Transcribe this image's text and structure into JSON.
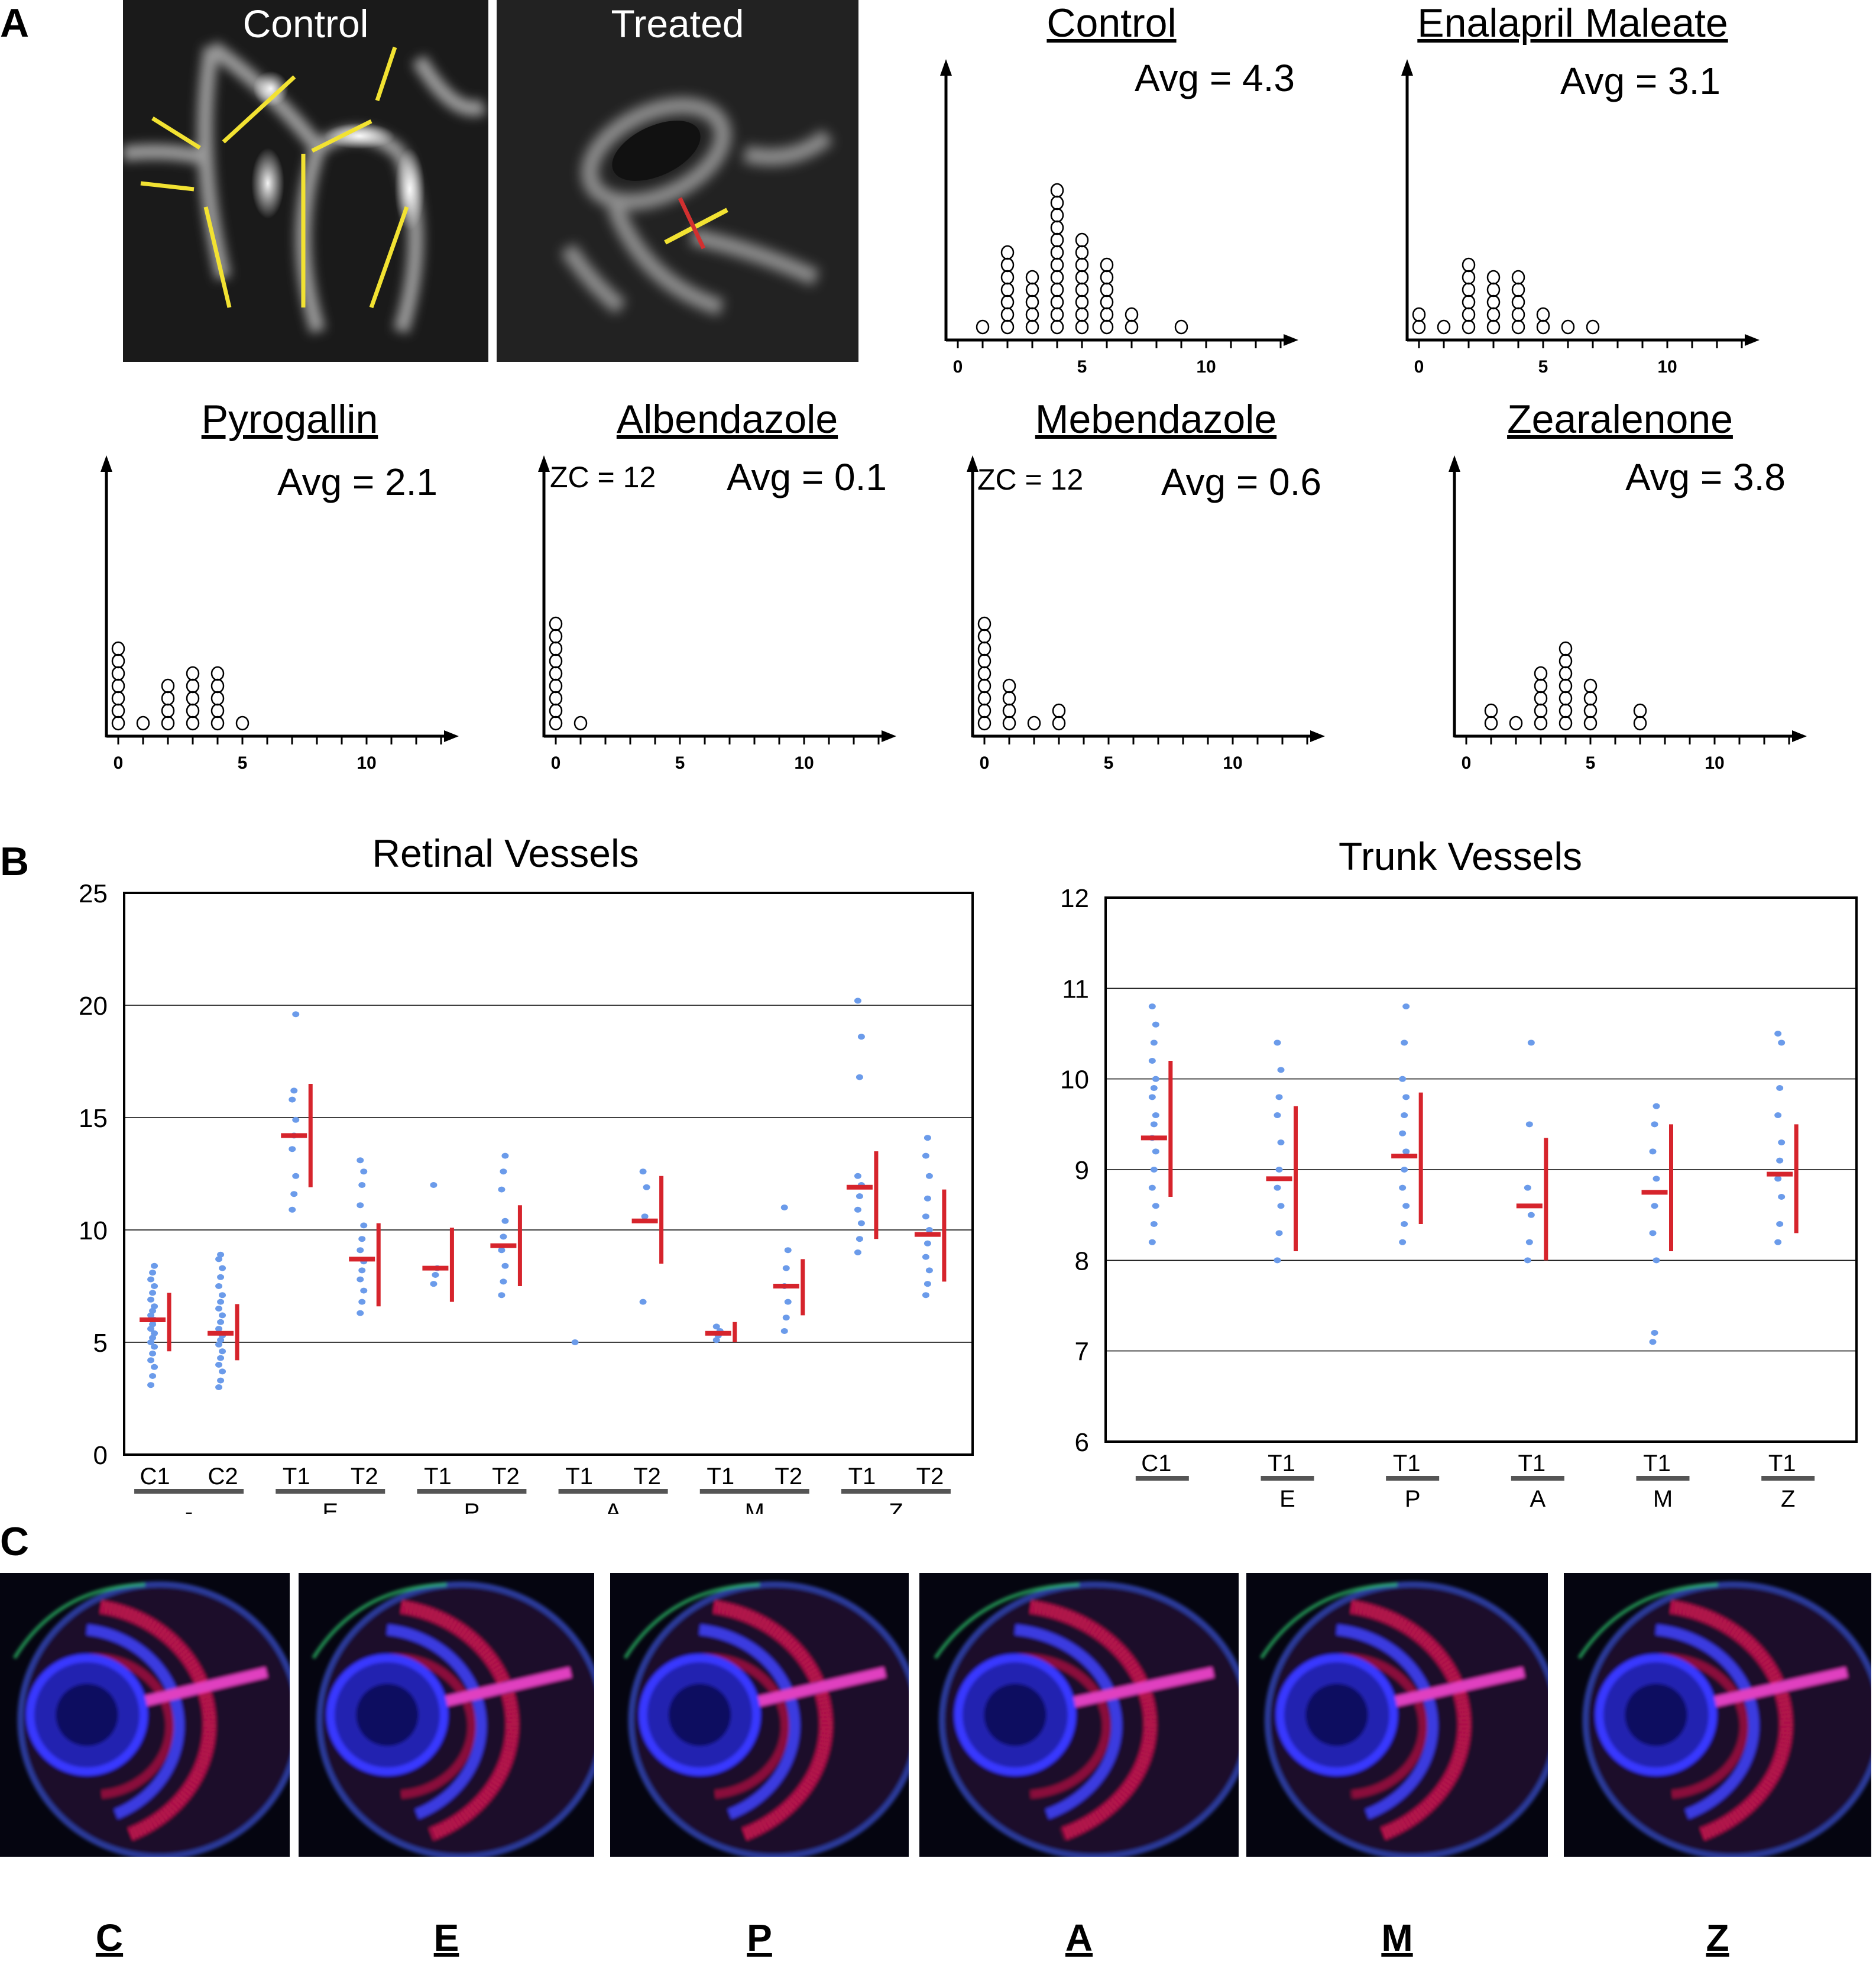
{
  "panel_labels": {
    "a": "A",
    "b": "B",
    "c": "C"
  },
  "micrographs": [
    {
      "label": "Control"
    },
    {
      "label": "Treated"
    }
  ],
  "chart_data": [
    {
      "type": "scatter",
      "panel": "A",
      "title": "Control",
      "avg_text": "Avg = 4.3",
      "zc_text": "",
      "x_ticks": [
        "0",
        "5",
        "10"
      ],
      "counts": [
        [
          1,
          1
        ],
        [
          2,
          7
        ],
        [
          3,
          5
        ],
        [
          4,
          12
        ],
        [
          5,
          8
        ],
        [
          6,
          6
        ],
        [
          7,
          2
        ],
        [
          9,
          1
        ]
      ]
    },
    {
      "type": "scatter",
      "panel": "A",
      "title": "Enalapril Maleate",
      "avg_text": "Avg = 3.1",
      "zc_text": "",
      "x_ticks": [
        "0",
        "5",
        "10"
      ],
      "counts": [
        [
          0,
          2
        ],
        [
          1,
          1
        ],
        [
          2,
          6
        ],
        [
          3,
          5
        ],
        [
          4,
          5
        ],
        [
          5,
          2
        ],
        [
          6,
          1
        ],
        [
          7,
          1
        ]
      ]
    },
    {
      "type": "scatter",
      "panel": "A",
      "title": "Pyrogallin",
      "avg_text": "Avg = 2.1",
      "zc_text": "",
      "x_ticks": [
        "0",
        "5",
        "10"
      ],
      "counts": [
        [
          0,
          7
        ],
        [
          1,
          1
        ],
        [
          2,
          4
        ],
        [
          3,
          5
        ],
        [
          4,
          5
        ],
        [
          5,
          1
        ]
      ]
    },
    {
      "type": "scatter",
      "panel": "A",
      "title": "Albendazole",
      "avg_text": "Avg = 0.1",
      "zc_text": "ZC = 12",
      "x_ticks": [
        "0",
        "5",
        "10"
      ],
      "counts": [
        [
          0,
          9
        ],
        [
          1,
          1
        ]
      ]
    },
    {
      "type": "scatter",
      "panel": "A",
      "title": "Mebendazole",
      "avg_text": "Avg = 0.6",
      "zc_text": "ZC = 12",
      "x_ticks": [
        "0",
        "5",
        "10"
      ],
      "counts": [
        [
          0,
          9
        ],
        [
          1,
          4
        ],
        [
          2,
          1
        ],
        [
          3,
          2
        ]
      ]
    },
    {
      "type": "scatter",
      "panel": "A",
      "title": "Zearalenone",
      "avg_text": "Avg = 3.8",
      "zc_text": "",
      "x_ticks": [
        "0",
        "5",
        "10"
      ],
      "counts": [
        [
          1,
          2
        ],
        [
          2,
          1
        ],
        [
          3,
          5
        ],
        [
          4,
          7
        ],
        [
          5,
          4
        ],
        [
          7,
          2
        ]
      ]
    },
    {
      "type": "scatter",
      "panel": "B",
      "title": "Retinal Vessels",
      "ylim": [
        0,
        25
      ],
      "y_ticks": [
        0,
        5,
        10,
        15,
        20,
        25
      ],
      "grid": true,
      "groups": [
        {
          "label": "-",
          "items": [
            {
              "sub": "C1",
              "mean": 6.0,
              "sd_low": 4.6,
              "sd_high": 7.2,
              "points": [
                3.1,
                3.5,
                3.9,
                4.2,
                4.5,
                4.8,
                5.0,
                5.2,
                5.4,
                5.6,
                5.8,
                6.0,
                6.2,
                6.4,
                6.6,
                6.9,
                7.2,
                7.5,
                7.8,
                8.1,
                8.4
              ]
            },
            {
              "sub": "C2",
              "mean": 5.4,
              "sd_low": 4.2,
              "sd_high": 6.7,
              "points": [
                3.0,
                3.3,
                3.7,
                4.0,
                4.3,
                4.6,
                4.9,
                5.1,
                5.3,
                5.6,
                5.9,
                6.2,
                6.5,
                6.8,
                7.1,
                7.5,
                7.9,
                8.3,
                8.7,
                8.9
              ]
            }
          ]
        },
        {
          "label": "E",
          "items": [
            {
              "sub": "T1",
              "mean": 14.2,
              "sd_low": 11.9,
              "sd_high": 16.5,
              "points": [
                10.9,
                11.6,
                12.4,
                13.6,
                14.2,
                14.9,
                15.8,
                16.2,
                19.6
              ]
            },
            {
              "sub": "T2",
              "mean": 8.7,
              "sd_low": 6.6,
              "sd_high": 10.3,
              "points": [
                6.3,
                6.8,
                7.3,
                7.8,
                8.2,
                8.6,
                9.1,
                9.6,
                10.2,
                11.1,
                12.0,
                12.6,
                13.1
              ]
            }
          ]
        },
        {
          "label": "P",
          "items": [
            {
              "sub": "T1",
              "mean": 8.3,
              "sd_low": 6.8,
              "sd_high": 10.1,
              "points": [
                7.6,
                8.0,
                8.3,
                12.0
              ]
            },
            {
              "sub": "T2",
              "mean": 9.3,
              "sd_low": 7.5,
              "sd_high": 11.1,
              "points": [
                7.1,
                7.7,
                8.4,
                9.1,
                9.7,
                10.4,
                11.8,
                12.6,
                13.3
              ]
            }
          ]
        },
        {
          "label": "A",
          "items": [
            {
              "sub": "T1",
              "mean": null,
              "sd_low": null,
              "sd_high": null,
              "points": [
                5.0
              ]
            },
            {
              "sub": "T2",
              "mean": 10.4,
              "sd_low": 8.5,
              "sd_high": 12.4,
              "points": [
                6.8,
                10.6,
                11.9,
                12.6
              ]
            }
          ]
        },
        {
          "label": "M",
          "items": [
            {
              "sub": "T1",
              "mean": 5.4,
              "sd_low": 5.0,
              "sd_high": 5.9,
              "points": [
                5.1,
                5.3,
                5.5,
                5.7
              ]
            },
            {
              "sub": "T2",
              "mean": 7.5,
              "sd_low": 6.2,
              "sd_high": 8.7,
              "points": [
                5.5,
                6.1,
                6.8,
                7.5,
                8.3,
                9.1,
                11.0
              ]
            }
          ]
        },
        {
          "label": "Z",
          "items": [
            {
              "sub": "T1",
              "mean": 11.9,
              "sd_low": 9.6,
              "sd_high": 13.5,
              "points": [
                9.0,
                9.6,
                10.3,
                10.9,
                11.5,
                12.0,
                12.4,
                16.8,
                18.6,
                20.2
              ]
            },
            {
              "sub": "T2",
              "mean": 9.8,
              "sd_low": 7.7,
              "sd_high": 11.8,
              "points": [
                7.1,
                7.6,
                8.2,
                8.8,
                9.4,
                10.0,
                10.6,
                11.4,
                12.4,
                13.3,
                14.1
              ]
            }
          ]
        }
      ]
    },
    {
      "type": "scatter",
      "panel": "B",
      "title": "Trunk Vessels",
      "ylim": [
        6,
        12
      ],
      "y_ticks": [
        6,
        7,
        8,
        9,
        10,
        11,
        12
      ],
      "grid": true,
      "groups": [
        {
          "label": "",
          "items": [
            {
              "sub": "C1",
              "mean": 9.35,
              "sd_low": 8.7,
              "sd_high": 10.2,
              "points": [
                8.2,
                8.4,
                8.6,
                8.8,
                9.0,
                9.2,
                9.35,
                9.5,
                9.6,
                9.8,
                9.9,
                10.0,
                10.2,
                10.4,
                10.6,
                10.8
              ]
            }
          ]
        },
        {
          "label": "E",
          "items": [
            {
              "sub": "T1",
              "mean": 8.9,
              "sd_low": 8.1,
              "sd_high": 9.7,
              "points": [
                8.0,
                8.3,
                8.6,
                8.8,
                9.0,
                9.3,
                9.6,
                9.8,
                10.1,
                10.4
              ]
            }
          ]
        },
        {
          "label": "P",
          "items": [
            {
              "sub": "T1",
              "mean": 9.15,
              "sd_low": 8.4,
              "sd_high": 9.85,
              "points": [
                8.2,
                8.4,
                8.6,
                8.8,
                9.0,
                9.2,
                9.4,
                9.6,
                9.8,
                10.0,
                10.4,
                10.8
              ]
            }
          ]
        },
        {
          "label": "A",
          "items": [
            {
              "sub": "T1",
              "mean": 8.6,
              "sd_low": 8.0,
              "sd_high": 9.35,
              "points": [
                8.0,
                8.2,
                8.5,
                8.8,
                9.5,
                10.4
              ]
            }
          ]
        },
        {
          "label": "M",
          "items": [
            {
              "sub": "T1",
              "mean": 8.75,
              "sd_low": 8.1,
              "sd_high": 9.5,
              "points": [
                7.1,
                7.2,
                8.0,
                8.3,
                8.6,
                8.9,
                9.2,
                9.5,
                9.7
              ]
            }
          ]
        },
        {
          "label": "Z",
          "items": [
            {
              "sub": "T1",
              "mean": 8.95,
              "sd_low": 8.3,
              "sd_high": 9.5,
              "points": [
                8.2,
                8.4,
                8.7,
                8.9,
                9.1,
                9.3,
                9.6,
                9.9,
                10.4,
                10.5
              ]
            }
          ]
        }
      ]
    }
  ],
  "eye_images": [
    {
      "label": "C"
    },
    {
      "label": "E"
    },
    {
      "label": "P"
    },
    {
      "label": "A"
    },
    {
      "label": "M"
    },
    {
      "label": "Z"
    }
  ],
  "colors": {
    "dots": "#6b9bea",
    "mean_bar": "#d6242c",
    "highlight_lines": "#f2e232",
    "measure_line": "#d23030",
    "group_underline": "#555555"
  }
}
